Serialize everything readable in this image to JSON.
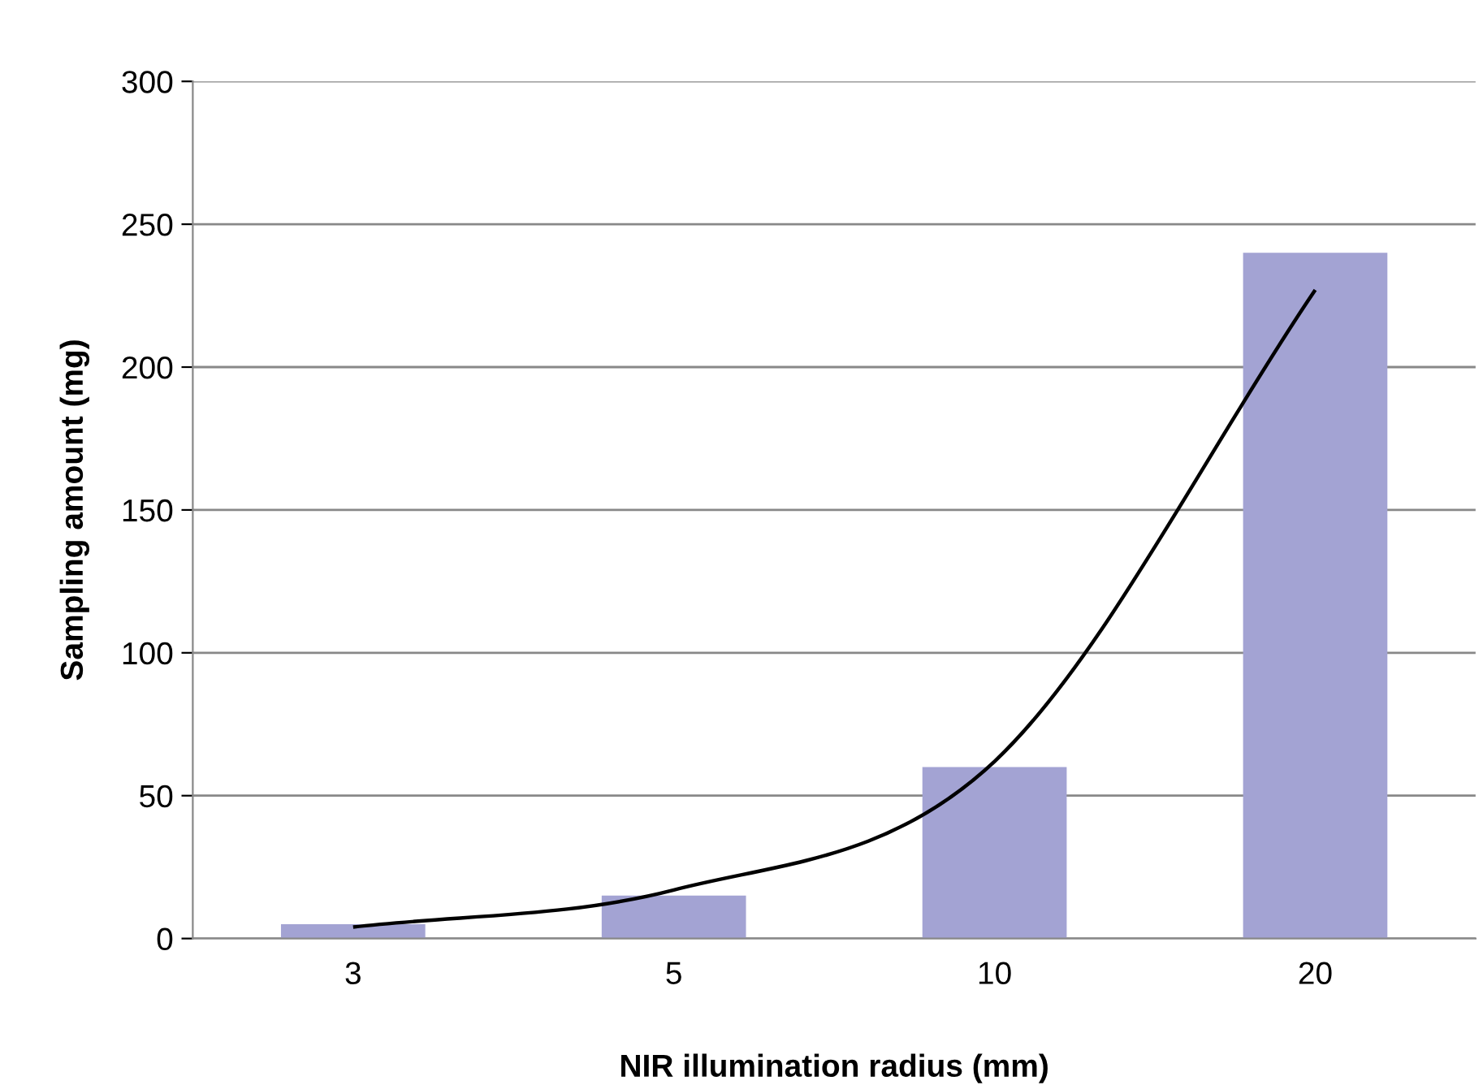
{
  "chart_data": {
    "type": "bar",
    "xlabel": "NIR illumination radius (mm)",
    "ylabel": "Sampling amount (mg)",
    "categories": [
      "3",
      "5",
      "10",
      "20"
    ],
    "series": [
      {
        "color": "#a3a3d3",
        "values": [
          5,
          15,
          60,
          240
        ]
      },
      {
        "type": "line",
        "color": "#000000",
        "values": [
          4,
          17,
          62,
          227
        ]
      }
    ],
    "ylim": [
      0,
      300
    ],
    "yticks": [
      0,
      50,
      100,
      150,
      200,
      250,
      300
    ],
    "grid": "y",
    "line_style": "solid",
    "marker": "none"
  }
}
